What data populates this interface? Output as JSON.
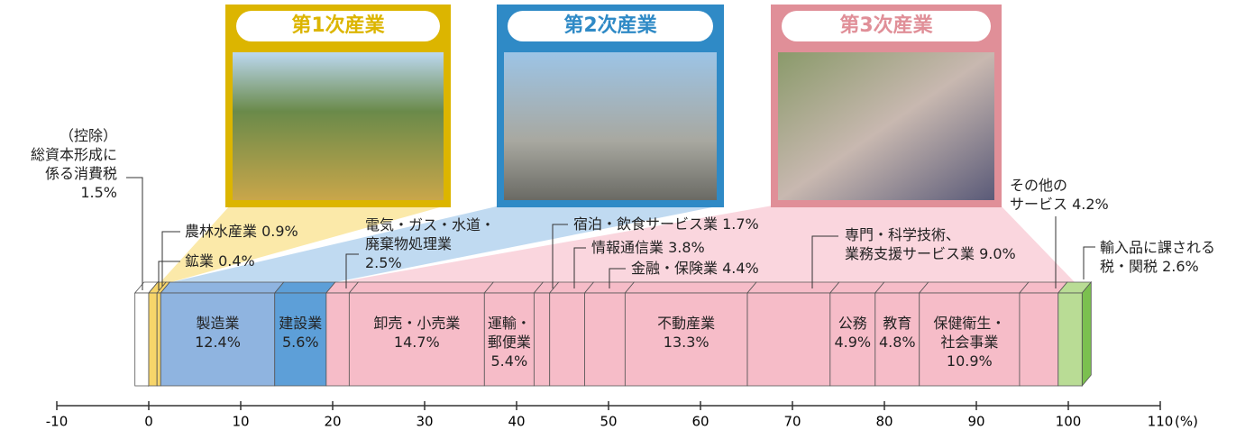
{
  "chart_data": {
    "type": "bar",
    "orientation": "horizontal",
    "stacked": true,
    "categories": [
      "（控除）\n総資本形成に\n係る消費税",
      "農林水産業",
      "鉱業",
      "製造業",
      "建設業",
      "電気・ガス・水道・\n廃棄物処理業",
      "卸売・小売業",
      "運輸・\n郵便業",
      "宿泊・飲食サービス業",
      "情報通信業",
      "金融・保険業",
      "不動産業",
      "専門・科学技術、\n業務支援サービス業",
      "公務",
      "教育",
      "保健衛生・\n社会事業",
      "その他の\nサービス",
      "輸入品に課される\n税・関税"
    ],
    "values": [
      1.5,
      0.9,
      0.4,
      12.4,
      5.6,
      2.5,
      14.7,
      5.4,
      1.7,
      3.8,
      4.4,
      13.3,
      9.0,
      4.9,
      4.8,
      10.9,
      4.2,
      2.6
    ],
    "value_labels": [
      "1.5%",
      "0.9%",
      "0.4%",
      "12.4%",
      "5.6%",
      "2.5%",
      "14.7%",
      "5.4%",
      "1.7%",
      "3.8%",
      "4.4%",
      "13.3%",
      "9.0%",
      "4.9%",
      "4.8%",
      "10.9%",
      "4.2%",
      "2.6%"
    ],
    "colors": [
      "#ffffff",
      "#f7d56a",
      "#f7d56a",
      "#8fb4e0",
      "#5d9fd8",
      "#f6bcc8",
      "#f6bcc8",
      "#f6bcc8",
      "#f6bcc8",
      "#f6bcc8",
      "#f6bcc8",
      "#f6bcc8",
      "#f6bcc8",
      "#f6bcc8",
      "#f6bcc8",
      "#f6bcc8",
      "#f6bcc8",
      "#b9dc95"
    ],
    "xlim": [
      -10,
      110
    ],
    "xticks": [
      -10,
      0,
      10,
      20,
      30,
      40,
      50,
      60,
      70,
      80,
      90,
      100,
      110
    ],
    "xlabel": "(%)",
    "sectors": [
      {
        "title": "第1次産業",
        "color": "#dcb500"
      },
      {
        "title": "第2次産業",
        "color": "#2f8ac6"
      },
      {
        "title": "第3次産業",
        "color": "#e08f98"
      }
    ]
  }
}
